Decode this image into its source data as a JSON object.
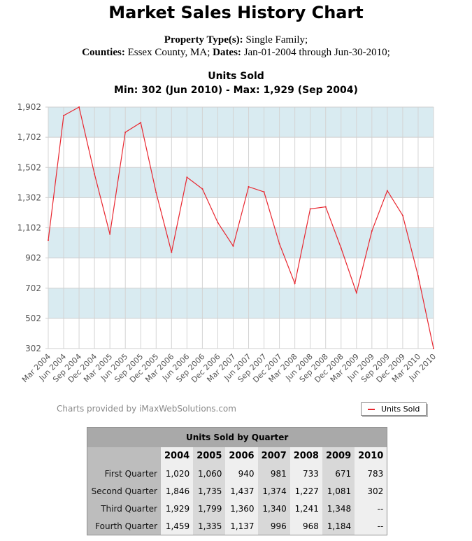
{
  "header": {
    "title": "Market Sales History Chart",
    "property_label": "Property Type(s):",
    "property_value": "Single Family;",
    "counties_label": "Counties:",
    "counties_value": "Essex County, MA;",
    "dates_label": "Dates:",
    "dates_value": "Jan-01-2004 through Jun-30-2010;"
  },
  "chart_data": {
    "type": "line",
    "title": "Units Sold",
    "subtitle": "Min: 302 (Jun 2010) - Max: 1,929 (Sep 2004)",
    "xlabel": "",
    "ylabel": "",
    "categories": [
      "Mar 2004",
      "Jun 2004",
      "Sep 2004",
      "Dec 2004",
      "Mar 2005",
      "Jun 2005",
      "Sep 2005",
      "Dec 2005",
      "Mar 2006",
      "Jun 2006",
      "Sep 2006",
      "Dec 2006",
      "Mar 2007",
      "Jun 2007",
      "Sep 2007",
      "Dec 2007",
      "Mar 2008",
      "Jun 2008",
      "Sep 2008",
      "Dec 2008",
      "Mar 2009",
      "Jun 2009",
      "Sep 2009",
      "Dec 2009",
      "Mar 2010",
      "Jun 2010"
    ],
    "series": [
      {
        "name": "Units Sold",
        "color": "#e8262f",
        "values": [
          1020,
          1846,
          1929,
          1459,
          1060,
          1735,
          1799,
          1335,
          940,
          1437,
          1360,
          1137,
          981,
          1374,
          1340,
          996,
          733,
          1227,
          1241,
          968,
          671,
          1081,
          1348,
          1184,
          783,
          302
        ]
      }
    ],
    "ylim": [
      302,
      1902
    ],
    "yticks": [
      302,
      502,
      702,
      902,
      1102,
      1302,
      1502,
      1702,
      1902
    ],
    "ytick_labels": [
      "302",
      "502",
      "702",
      "902",
      "1,102",
      "1,302",
      "1,502",
      "1,702",
      "1,902"
    ],
    "grid": true,
    "band_color": "#d9ebf1",
    "legend_position": "bottom-right"
  },
  "credit": "Charts provided by iMaxWebSolutions.com",
  "legend": {
    "label": "Units Sold"
  },
  "table": {
    "caption": "Units Sold by Quarter",
    "years": [
      "2004",
      "2005",
      "2006",
      "2007",
      "2008",
      "2009",
      "2010"
    ],
    "rows": [
      {
        "label": "First Quarter",
        "values": [
          "1,020",
          "1,060",
          "940",
          "981",
          "733",
          "671",
          "783"
        ]
      },
      {
        "label": "Second Quarter",
        "values": [
          "1,846",
          "1,735",
          "1,437",
          "1,374",
          "1,227",
          "1,081",
          "302"
        ]
      },
      {
        "label": "Third Quarter",
        "values": [
          "1,929",
          "1,799",
          "1,360",
          "1,340",
          "1,241",
          "1,348",
          "--"
        ]
      },
      {
        "label": "Fourth Quarter",
        "values": [
          "1,459",
          "1,335",
          "1,137",
          "996",
          "968",
          "1,184",
          "--"
        ]
      }
    ]
  }
}
